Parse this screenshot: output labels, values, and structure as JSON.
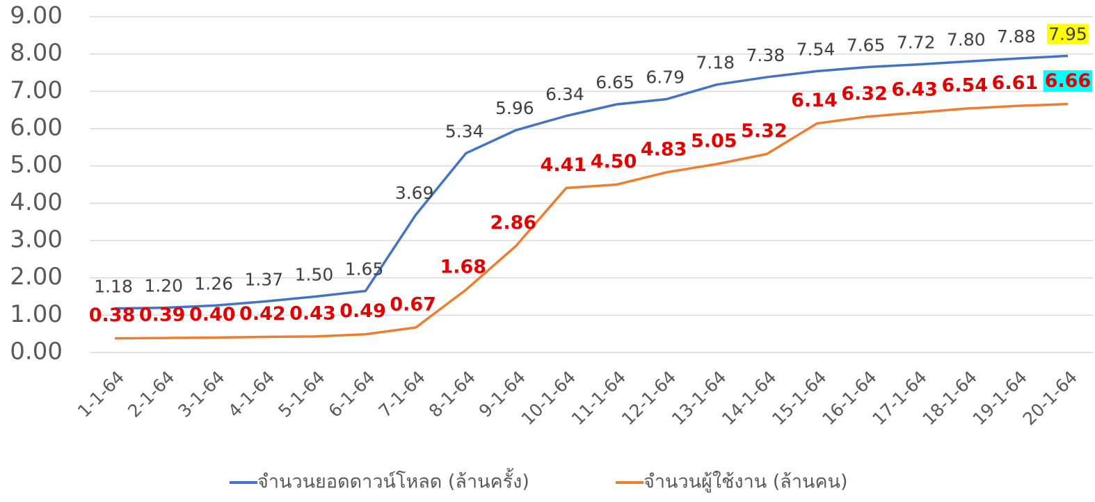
{
  "chart_data": {
    "type": "line",
    "categories": [
      "1-1-64",
      "2-1-64",
      "3-1-64",
      "4-1-64",
      "5-1-64",
      "6-1-64",
      "7-1-64",
      "8-1-64",
      "9-1-64",
      "10-1-64",
      "11-1-64",
      "12-1-64",
      "13-1-64",
      "14-1-64",
      "15-1-64",
      "16-1-64",
      "17-1-64",
      "18-1-64",
      "19-1-64",
      "20-1-64"
    ],
    "series": [
      {
        "name": "จำนวนยอดดาวน์โหลด (ล้านครั้ง)",
        "color": "#4472c4",
        "values": [
          1.18,
          1.2,
          1.26,
          1.37,
          1.5,
          1.65,
          3.69,
          5.34,
          5.96,
          6.34,
          6.65,
          6.79,
          7.18,
          7.38,
          7.54,
          7.65,
          7.72,
          7.8,
          7.88,
          7.95
        ],
        "value_labels": [
          "1.18",
          "1.20",
          "1.26",
          "1.37",
          "1.50",
          "1.65",
          "3.69",
          "5.34",
          "5.96",
          "6.34",
          "6.65",
          "6.79",
          "7.18",
          "7.38",
          "7.54",
          "7.65",
          "7.72",
          "7.80",
          "7.88",
          "7.95"
        ]
      },
      {
        "name": "จำนวนผู้ใช้งาน (ล้านคน)",
        "color": "#ed7d31",
        "values": [
          0.38,
          0.39,
          0.4,
          0.42,
          0.43,
          0.49,
          0.67,
          1.68,
          2.86,
          4.41,
          4.5,
          4.83,
          5.05,
          5.32,
          6.14,
          6.32,
          6.43,
          6.54,
          6.61,
          6.66
        ],
        "value_labels": [
          "0.38",
          "0.39",
          "0.40",
          "0.42",
          "0.43",
          "0.49",
          "0.67",
          "1.68",
          "2.86",
          "4.41",
          "4.50",
          "4.83",
          "5.05",
          "5.32",
          "6.14",
          "6.32",
          "6.43",
          "6.54",
          "6.61",
          "6.66"
        ]
      }
    ],
    "ylim": [
      0,
      9
    ],
    "yticks": [
      {
        "value": 0,
        "label": "0.00"
      },
      {
        "value": 1,
        "label": "1.00"
      },
      {
        "value": 2,
        "label": "2.00"
      },
      {
        "value": 3,
        "label": "3.00"
      },
      {
        "value": 4,
        "label": "4.00"
      },
      {
        "value": 5,
        "label": "5.00"
      },
      {
        "value": 6,
        "label": "6.00"
      },
      {
        "value": 7,
        "label": "7.00"
      },
      {
        "value": 8,
        "label": "8.00"
      },
      {
        "value": 9,
        "label": "9.00"
      }
    ],
    "grid": true,
    "legend": "bottom"
  }
}
